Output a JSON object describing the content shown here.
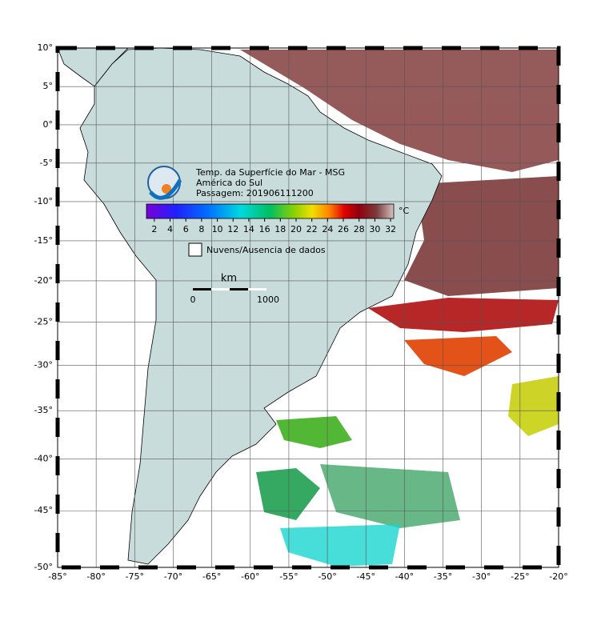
{
  "map": {
    "title": "Temp. da Superfície do Mar - MSG",
    "region": "América do Sul",
    "pass": "Passagem: 201906111200",
    "lonlim": [
      -85,
      -20
    ],
    "latlim": [
      -50,
      10
    ],
    "lonticks": [
      {
        "value": -85,
        "label": "-85°"
      },
      {
        "value": -80,
        "label": "-80°"
      },
      {
        "value": -75,
        "label": "-75°"
      },
      {
        "value": -70,
        "label": "-70°"
      },
      {
        "value": -65,
        "label": "-65°"
      },
      {
        "value": -60,
        "label": "-60°"
      },
      {
        "value": -55,
        "label": "-55°"
      },
      {
        "value": -50,
        "label": "-50°"
      },
      {
        "value": -45,
        "label": "-45°"
      },
      {
        "value": -40,
        "label": "-40°"
      },
      {
        "value": -35,
        "label": "-35°"
      },
      {
        "value": -30,
        "label": "-30°"
      },
      {
        "value": -25,
        "label": "-25°"
      },
      {
        "value": -20,
        "label": "-20°"
      }
    ],
    "latticks": [
      {
        "value": 10,
        "label": "10°"
      },
      {
        "value": 5,
        "label": "5°"
      },
      {
        "value": 0,
        "label": "0°"
      },
      {
        "value": -5,
        "label": "-5°"
      },
      {
        "value": -10,
        "label": "-10°"
      },
      {
        "value": -15,
        "label": "-15°"
      },
      {
        "value": -20,
        "label": "-20°"
      },
      {
        "value": -25,
        "label": "-25°"
      },
      {
        "value": -30,
        "label": "-30°"
      },
      {
        "value": -35,
        "label": "-35°"
      },
      {
        "value": -40,
        "label": "-40°"
      },
      {
        "value": -45,
        "label": "-45°"
      },
      {
        "value": -50,
        "label": "-50°"
      }
    ],
    "colorbar": {
      "range": [
        1,
        32.4
      ],
      "ticks": [
        2,
        4,
        6,
        8,
        10,
        12,
        14,
        16,
        18,
        20,
        22,
        24,
        26,
        28,
        30,
        32
      ],
      "unit": "°C"
    },
    "legend": "Nuvens/Ausencia de dados",
    "scale": {
      "unit": "km",
      "start": "0",
      "end": "1000"
    }
  }
}
